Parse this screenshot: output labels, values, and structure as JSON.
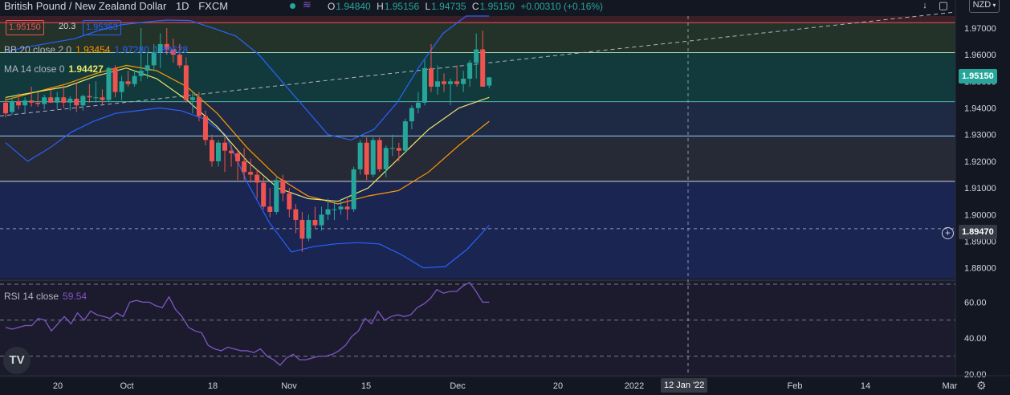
{
  "header": {
    "symbol": "British Pound / New Zealand Dollar",
    "interval": "1D",
    "exchange": "FXCM",
    "ohlc": {
      "o_label": "O",
      "o": "1.94840",
      "h_label": "H",
      "h": "1.95156",
      "l_label": "L",
      "l": "1.94735",
      "c_label": "C",
      "c": "1.95150",
      "change": "+0.00310 (+0.16%)"
    },
    "sell_price": "1.95150",
    "spread": "20.3",
    "buy_price": "1.95353"
  },
  "currency_button": "NZD",
  "indicators": {
    "bb": {
      "label": "BB 20 close 2 0",
      "basis": "1.93454",
      "upper": "1.97280",
      "lower": "1.89628"
    },
    "ma": {
      "label": "MA 14 close 0",
      "value": "1.94427"
    },
    "rsi": {
      "label": "RSI 14 close",
      "value": "59.54"
    }
  },
  "badges": {
    "last_price": "1.95150",
    "crosshair_price": "1.89470",
    "crosshair_date": "12 Jan '22"
  },
  "logo_text": "TV",
  "colors": {
    "bg": "#131722",
    "up": "#26a69a",
    "down": "#ef5350",
    "bb_band": "#2962ff",
    "bb_basis": "#ff9800",
    "ma": "#e9e46a",
    "rsi": "#7e57c2"
  },
  "chart_data": {
    "type": "candlestick",
    "ylim": [
      1.876,
      1.9745
    ],
    "y_ticks": [
      "1.97000",
      "1.96000",
      "1.95000",
      "1.94000",
      "1.93000",
      "1.92000",
      "1.91000",
      "1.90000",
      "1.89000",
      "1.88000"
    ],
    "y_tick_values": [
      1.97,
      1.96,
      1.95,
      1.94,
      1.93,
      1.92,
      1.91,
      1.9,
      1.89,
      1.88
    ],
    "x_ticks": [
      "20",
      "Oct",
      "18",
      "Nov",
      "15",
      "Dec",
      "20",
      "2022",
      "Feb",
      "14",
      "Mar"
    ],
    "horizontal_levels": [
      1.972,
      1.9608,
      1.9424,
      1.9295,
      1.9125
    ],
    "trendline": {
      "from": 1.937,
      "to": 1.976
    },
    "candles": [
      {
        "o": 1.942,
        "h": 1.944,
        "l": 1.9365,
        "c": 1.938
      },
      {
        "o": 1.9385,
        "h": 1.944,
        "l": 1.9375,
        "c": 1.9425
      },
      {
        "o": 1.9425,
        "h": 1.9455,
        "l": 1.9395,
        "c": 1.941
      },
      {
        "o": 1.941,
        "h": 1.944,
        "l": 1.938,
        "c": 1.9428
      },
      {
        "o": 1.9428,
        "h": 1.948,
        "l": 1.9405,
        "c": 1.942
      },
      {
        "o": 1.942,
        "h": 1.946,
        "l": 1.9405,
        "c": 1.9415
      },
      {
        "o": 1.9415,
        "h": 1.945,
        "l": 1.9395,
        "c": 1.944
      },
      {
        "o": 1.944,
        "h": 1.947,
        "l": 1.942,
        "c": 1.942
      },
      {
        "o": 1.942,
        "h": 1.946,
        "l": 1.9395,
        "c": 1.944
      },
      {
        "o": 1.944,
        "h": 1.949,
        "l": 1.94,
        "c": 1.942
      },
      {
        "o": 1.942,
        "h": 1.9445,
        "l": 1.939,
        "c": 1.9435
      },
      {
        "o": 1.9435,
        "h": 1.9495,
        "l": 1.9385,
        "c": 1.941
      },
      {
        "o": 1.941,
        "h": 1.945,
        "l": 1.939,
        "c": 1.9445
      },
      {
        "o": 1.9445,
        "h": 1.949,
        "l": 1.942,
        "c": 1.944
      },
      {
        "o": 1.944,
        "h": 1.95,
        "l": 1.942,
        "c": 1.944
      },
      {
        "o": 1.944,
        "h": 1.947,
        "l": 1.941,
        "c": 1.943
      },
      {
        "o": 1.943,
        "h": 1.9555,
        "l": 1.9425,
        "c": 1.955
      },
      {
        "o": 1.955,
        "h": 1.956,
        "l": 1.944,
        "c": 1.946
      },
      {
        "o": 1.946,
        "h": 1.952,
        "l": 1.943,
        "c": 1.95
      },
      {
        "o": 1.95,
        "h": 1.954,
        "l": 1.948,
        "c": 1.949
      },
      {
        "o": 1.949,
        "h": 1.954,
        "l": 1.948,
        "c": 1.952
      },
      {
        "o": 1.952,
        "h": 1.97,
        "l": 1.95,
        "c": 1.954
      },
      {
        "o": 1.954,
        "h": 1.961,
        "l": 1.951,
        "c": 1.956
      },
      {
        "o": 1.956,
        "h": 1.964,
        "l": 1.954,
        "c": 1.961
      },
      {
        "o": 1.961,
        "h": 1.968,
        "l": 1.955,
        "c": 1.964
      },
      {
        "o": 1.964,
        "h": 1.97,
        "l": 1.96,
        "c": 1.962
      },
      {
        "o": 1.962,
        "h": 1.966,
        "l": 1.957,
        "c": 1.96
      },
      {
        "o": 1.96,
        "h": 1.964,
        "l": 1.955,
        "c": 1.956
      },
      {
        "o": 1.956,
        "h": 1.959,
        "l": 1.942,
        "c": 1.943
      },
      {
        "o": 1.943,
        "h": 1.946,
        "l": 1.938,
        "c": 1.944
      },
      {
        "o": 1.944,
        "h": 1.946,
        "l": 1.935,
        "c": 1.937
      },
      {
        "o": 1.937,
        "h": 1.939,
        "l": 1.926,
        "c": 1.928
      },
      {
        "o": 1.928,
        "h": 1.93,
        "l": 1.918,
        "c": 1.92
      },
      {
        "o": 1.92,
        "h": 1.928,
        "l": 1.918,
        "c": 1.927
      },
      {
        "o": 1.927,
        "h": 1.929,
        "l": 1.916,
        "c": 1.924
      },
      {
        "o": 1.924,
        "h": 1.926,
        "l": 1.918,
        "c": 1.923
      },
      {
        "o": 1.923,
        "h": 1.924,
        "l": 1.913,
        "c": 1.92
      },
      {
        "o": 1.92,
        "h": 1.925,
        "l": 1.913,
        "c": 1.916
      },
      {
        "o": 1.916,
        "h": 1.921,
        "l": 1.912,
        "c": 1.915
      },
      {
        "o": 1.915,
        "h": 1.917,
        "l": 1.906,
        "c": 1.912
      },
      {
        "o": 1.912,
        "h": 1.914,
        "l": 1.902,
        "c": 1.903
      },
      {
        "o": 1.903,
        "h": 1.91,
        "l": 1.899,
        "c": 1.901
      },
      {
        "o": 1.901,
        "h": 1.914,
        "l": 1.9,
        "c": 1.913
      },
      {
        "o": 1.913,
        "h": 1.915,
        "l": 1.905,
        "c": 1.908
      },
      {
        "o": 1.908,
        "h": 1.91,
        "l": 1.899,
        "c": 1.902
      },
      {
        "o": 1.902,
        "h": 1.904,
        "l": 1.893,
        "c": 1.898
      },
      {
        "o": 1.898,
        "h": 1.901,
        "l": 1.886,
        "c": 1.891
      },
      {
        "o": 1.891,
        "h": 1.9,
        "l": 1.89,
        "c": 1.898
      },
      {
        "o": 1.898,
        "h": 1.903,
        "l": 1.895,
        "c": 1.896
      },
      {
        "o": 1.896,
        "h": 1.903,
        "l": 1.894,
        "c": 1.9
      },
      {
        "o": 1.9,
        "h": 1.906,
        "l": 1.898,
        "c": 1.902
      },
      {
        "o": 1.902,
        "h": 1.905,
        "l": 1.898,
        "c": 1.902
      },
      {
        "o": 1.902,
        "h": 1.906,
        "l": 1.9,
        "c": 1.903
      },
      {
        "o": 1.903,
        "h": 1.906,
        "l": 1.898,
        "c": 1.902
      },
      {
        "o": 1.902,
        "h": 1.918,
        "l": 1.901,
        "c": 1.917
      },
      {
        "o": 1.917,
        "h": 1.928,
        "l": 1.915,
        "c": 1.927
      },
      {
        "o": 1.927,
        "h": 1.929,
        "l": 1.913,
        "c": 1.915
      },
      {
        "o": 1.915,
        "h": 1.929,
        "l": 1.914,
        "c": 1.928
      },
      {
        "o": 1.928,
        "h": 1.929,
        "l": 1.916,
        "c": 1.917
      },
      {
        "o": 1.917,
        "h": 1.926,
        "l": 1.914,
        "c": 1.925
      },
      {
        "o": 1.925,
        "h": 1.93,
        "l": 1.922,
        "c": 1.925
      },
      {
        "o": 1.925,
        "h": 1.927,
        "l": 1.92,
        "c": 1.924
      },
      {
        "o": 1.924,
        "h": 1.936,
        "l": 1.923,
        "c": 1.935
      },
      {
        "o": 1.935,
        "h": 1.941,
        "l": 1.932,
        "c": 1.94
      },
      {
        "o": 1.94,
        "h": 1.946,
        "l": 1.938,
        "c": 1.942
      },
      {
        "o": 1.942,
        "h": 1.958,
        "l": 1.941,
        "c": 1.955
      },
      {
        "o": 1.955,
        "h": 1.964,
        "l": 1.946,
        "c": 1.948
      },
      {
        "o": 1.948,
        "h": 1.956,
        "l": 1.945,
        "c": 1.95
      },
      {
        "o": 1.95,
        "h": 1.953,
        "l": 1.946,
        "c": 1.949
      },
      {
        "o": 1.949,
        "h": 1.951,
        "l": 1.941,
        "c": 1.95
      },
      {
        "o": 1.95,
        "h": 1.956,
        "l": 1.948,
        "c": 1.949
      },
      {
        "o": 1.949,
        "h": 1.954,
        "l": 1.946,
        "c": 1.951
      },
      {
        "o": 1.951,
        "h": 1.958,
        "l": 1.948,
        "c": 1.957
      },
      {
        "o": 1.957,
        "h": 1.968,
        "l": 1.951,
        "c": 1.962
      },
      {
        "o": 1.962,
        "h": 1.969,
        "l": 1.948,
        "c": 1.948
      },
      {
        "o": 1.9484,
        "h": 1.9516,
        "l": 1.9474,
        "c": 1.9515
      }
    ],
    "bb_upper": [
      1.9612,
      1.963,
      1.9645,
      1.966,
      1.969,
      1.9712,
      1.9722,
      1.973,
      1.9728,
      1.97,
      1.967,
      1.96,
      1.95,
      1.94,
      1.93,
      1.928,
      1.932,
      1.942,
      1.956,
      1.968,
      1.9745,
      1.9745
    ],
    "bb_lower": [
      1.927,
      1.92,
      1.925,
      1.931,
      1.935,
      1.938,
      1.939,
      1.94,
      1.939,
      1.936,
      1.93,
      1.912,
      1.897,
      1.886,
      1.888,
      1.889,
      1.8895,
      1.889,
      1.885,
      1.88,
      1.8805,
      1.887,
      1.896
    ],
    "bb_basis": [
      1.943,
      1.946,
      1.949,
      1.953,
      1.956,
      1.954,
      1.948,
      1.938,
      1.925,
      1.914,
      1.907,
      1.904,
      1.907,
      1.909,
      1.916,
      1.926,
      1.935
    ],
    "ma14": [
      1.944,
      1.946,
      1.948,
      1.952,
      1.955,
      1.951,
      1.943,
      1.933,
      1.92,
      1.91,
      1.906,
      1.905,
      1.91,
      1.921,
      1.932,
      1.94,
      1.944
    ],
    "rsi": {
      "ylim": [
        20,
        70
      ],
      "y_ticks": [
        "60.00",
        "40.00",
        "20.00"
      ],
      "y_tick_values": [
        60,
        40,
        20
      ],
      "levels": [
        70,
        50,
        30
      ],
      "values": [
        46,
        45,
        46,
        47,
        47,
        51,
        50,
        44,
        48,
        52,
        48,
        54,
        50,
        55,
        53,
        52,
        51,
        54,
        52,
        60,
        61,
        60,
        60,
        58,
        57,
        63,
        56,
        52,
        46,
        44,
        43,
        36,
        34,
        33,
        35,
        34,
        33,
        33,
        32,
        34,
        30,
        28,
        25,
        29,
        31,
        28,
        28,
        29,
        30,
        30,
        31,
        33,
        36,
        41,
        44,
        51,
        48,
        55,
        50,
        52,
        53,
        52,
        53,
        57,
        59,
        62,
        67,
        65,
        66,
        66,
        69,
        71,
        66,
        60,
        60
      ]
    }
  }
}
